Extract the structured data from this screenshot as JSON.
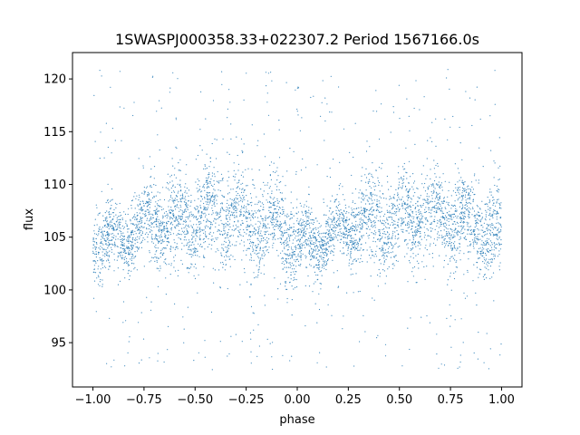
{
  "chart_data": {
    "type": "scatter",
    "title": "1SWASPJ000358.33+022307.2 Period 1567166.0s",
    "xlabel": "phase",
    "ylabel": "flux",
    "xlim": [
      -1.1,
      1.1
    ],
    "ylim": [
      90.8,
      122.5
    ],
    "x_ticks": [
      -1.0,
      -0.75,
      -0.5,
      -0.25,
      0.0,
      0.25,
      0.5,
      0.75,
      1.0
    ],
    "x_tick_labels": [
      "−1.00",
      "−0.75",
      "−0.50",
      "−0.25",
      "0.00",
      "0.25",
      "0.50",
      "0.75",
      "1.00"
    ],
    "y_ticks": [
      95,
      100,
      105,
      110,
      115,
      120
    ],
    "y_tick_labels": [
      "95",
      "100",
      "105",
      "110",
      "115",
      "120"
    ],
    "grid": false,
    "series_color": "#1f77b4",
    "phase_range": [
      -1.0,
      1.0
    ],
    "profile": {
      "phase": [
        0.0,
        0.05,
        0.1,
        0.15,
        0.2,
        0.25,
        0.3,
        0.35,
        0.4,
        0.45,
        0.5,
        0.55,
        0.6,
        0.65,
        0.7,
        0.75,
        0.8,
        0.85,
        0.9,
        0.95,
        1.0
      ],
      "upper": [
        108.5,
        108.0,
        107.5,
        108.0,
        108.5,
        109.0,
        110.5,
        110.5,
        111.0,
        110.5,
        111.0,
        111.5,
        111.5,
        111.0,
        111.5,
        111.0,
        110.5,
        110.5,
        110.0,
        109.5,
        109.0
      ],
      "lower": [
        100.5,
        101.0,
        101.5,
        102.0,
        102.5,
        103.0,
        102.5,
        102.0,
        101.5,
        102.5,
        102.5,
        102.0,
        103.0,
        102.5,
        103.0,
        102.0,
        102.0,
        102.5,
        102.5,
        101.0,
        100.0
      ]
    }
  }
}
